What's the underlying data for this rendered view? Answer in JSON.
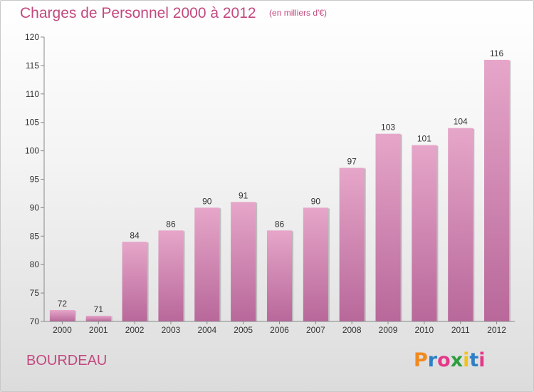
{
  "header": {
    "title": "Charges de Personnel 2000 à 2012",
    "subtitle": "(en milliers d'€)"
  },
  "footer": {
    "place": "BOURDEAU",
    "brand": "Proxiti"
  },
  "colors": {
    "bar_top": "#e6a6c9",
    "bar_bottom": "#b8689a",
    "title": "#c2497f"
  },
  "chart_data": {
    "type": "bar",
    "title": "Charges de Personnel 2000 à 2012",
    "subtitle": "(en milliers d'€)",
    "categories": [
      "2000",
      "2001",
      "2002",
      "2003",
      "2004",
      "2005",
      "2006",
      "2007",
      "2008",
      "2009",
      "2010",
      "2011",
      "2012"
    ],
    "values": [
      72,
      71,
      84,
      86,
      90,
      91,
      86,
      90,
      97,
      103,
      101,
      104,
      116
    ],
    "ylim": [
      70,
      120
    ],
    "yticks": [
      70,
      75,
      80,
      85,
      90,
      95,
      100,
      105,
      110,
      115,
      120
    ],
    "grid": false,
    "data_labels": true
  }
}
